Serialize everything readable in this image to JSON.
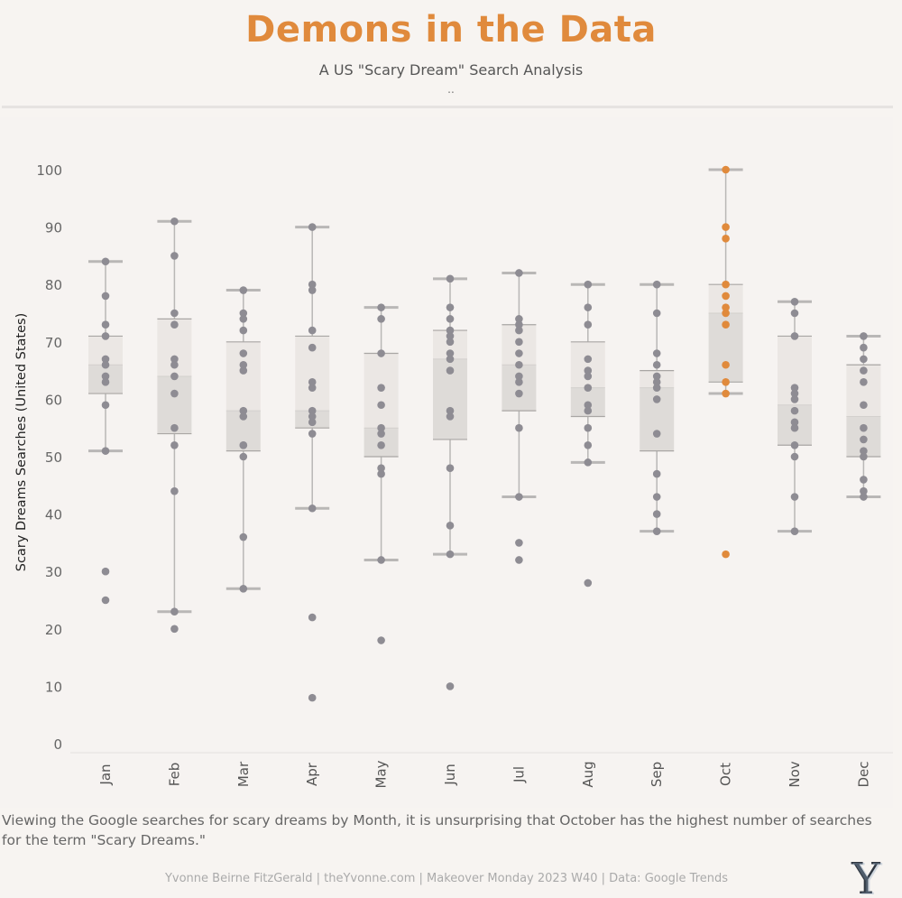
{
  "header": {
    "title": "Demons in the Data",
    "subtitle": "A US \"Scary Dream\" Search Analysis",
    "dots": ".."
  },
  "caption": "Viewing the Google searches for scary dreams by Month, it is unsurprising that October has the highest number of searches for the term \"Scary Dreams.\"",
  "footer": "Yvonne Beirne FitzGerald | theYvonne.com | Makeover Monday 2023 W40 | Data: Google Trends",
  "logo": {
    "letter": "Y"
  },
  "colors": {
    "highlight": "#e08a3c",
    "point": "#8e8c93",
    "whisker": "#b9b7b6",
    "box_upper": "#ebe7e4",
    "box_lower": "#dedbd8",
    "title": "#e08a3c"
  },
  "chart_data": {
    "type": "box",
    "ylabel": "Scary Dreams Searches  (United States)",
    "xlabel": "",
    "ylim": [
      0,
      100
    ],
    "yticks": [
      0,
      10,
      20,
      30,
      40,
      50,
      60,
      70,
      80,
      90,
      100
    ],
    "grid": false,
    "highlight_category": "Oct",
    "categories": [
      "Jan",
      "Feb",
      "Mar",
      "Apr",
      "May",
      "Jun",
      "Jul",
      "Aug",
      "Sep",
      "Oct",
      "Nov",
      "Dec"
    ],
    "boxes": [
      {
        "month": "Jan",
        "whisker_low": 51,
        "q1": 61,
        "median": 66,
        "q3": 71,
        "whisker_high": 84
      },
      {
        "month": "Feb",
        "whisker_low": 23,
        "q1": 54,
        "median": 64,
        "q3": 74,
        "whisker_high": 91
      },
      {
        "month": "Mar",
        "whisker_low": 27,
        "q1": 51,
        "median": 58,
        "q3": 70,
        "whisker_high": 79
      },
      {
        "month": "Apr",
        "whisker_low": 41,
        "q1": 55,
        "median": 58,
        "q3": 71,
        "whisker_high": 90
      },
      {
        "month": "May",
        "whisker_low": 32,
        "q1": 50,
        "median": 55,
        "q3": 68,
        "whisker_high": 76
      },
      {
        "month": "Jun",
        "whisker_low": 33,
        "q1": 53,
        "median": 67,
        "q3": 72,
        "whisker_high": 81
      },
      {
        "month": "Jul",
        "whisker_low": 43,
        "q1": 58,
        "median": 66,
        "q3": 73,
        "whisker_high": 82
      },
      {
        "month": "Aug",
        "whisker_low": 49,
        "q1": 57,
        "median": 62,
        "q3": 70,
        "whisker_high": 80
      },
      {
        "month": "Sep",
        "whisker_low": 37,
        "q1": 51,
        "median": 62,
        "q3": 65,
        "whisker_high": 80
      },
      {
        "month": "Oct",
        "whisker_low": 61,
        "q1": 63,
        "median": 75,
        "q3": 80,
        "whisker_high": 100
      },
      {
        "month": "Nov",
        "whisker_low": 37,
        "q1": 52,
        "median": 59,
        "q3": 71,
        "whisker_high": 77
      },
      {
        "month": "Dec",
        "whisker_low": 43,
        "q1": 50,
        "median": 57,
        "q3": 66,
        "whisker_high": 71
      }
    ],
    "points": [
      {
        "month": "Jan",
        "values": [
          84,
          78,
          73,
          71,
          67,
          66,
          64,
          63,
          59,
          51,
          30,
          25
        ]
      },
      {
        "month": "Feb",
        "values": [
          91,
          85,
          75,
          73,
          67,
          66,
          64,
          61,
          55,
          52,
          44,
          23,
          20
        ]
      },
      {
        "month": "Mar",
        "values": [
          79,
          75,
          74,
          72,
          68,
          66,
          65,
          58,
          57,
          52,
          52,
          50,
          36,
          27
        ]
      },
      {
        "month": "Apr",
        "values": [
          90,
          80,
          79,
          72,
          69,
          63,
          62,
          58,
          57,
          56,
          54,
          41,
          22,
          8
        ]
      },
      {
        "month": "May",
        "values": [
          76,
          74,
          68,
          62,
          59,
          55,
          54,
          52,
          48,
          47,
          32,
          18
        ]
      },
      {
        "month": "Jun",
        "values": [
          81,
          76,
          74,
          72,
          71,
          70,
          68,
          67,
          65,
          58,
          57,
          48,
          38,
          33,
          10
        ]
      },
      {
        "month": "Jul",
        "values": [
          82,
          74,
          73,
          72,
          70,
          68,
          66,
          64,
          63,
          61,
          55,
          43,
          35,
          32
        ]
      },
      {
        "month": "Aug",
        "values": [
          80,
          76,
          73,
          67,
          65,
          64,
          62,
          59,
          58,
          55,
          52,
          49,
          28
        ]
      },
      {
        "month": "Sep",
        "values": [
          80,
          75,
          68,
          66,
          64,
          63,
          62,
          60,
          54,
          47,
          43,
          40,
          37
        ]
      },
      {
        "month": "Oct",
        "values": [
          100,
          90,
          88,
          80,
          78,
          76,
          75,
          73,
          66,
          63,
          61,
          33
        ]
      },
      {
        "month": "Nov",
        "values": [
          77,
          75,
          71,
          62,
          61,
          60,
          58,
          56,
          55,
          52,
          50,
          43,
          37
        ]
      },
      {
        "month": "Dec",
        "values": [
          71,
          69,
          67,
          65,
          63,
          59,
          55,
          53,
          51,
          50,
          46,
          44,
          43
        ]
      }
    ]
  }
}
